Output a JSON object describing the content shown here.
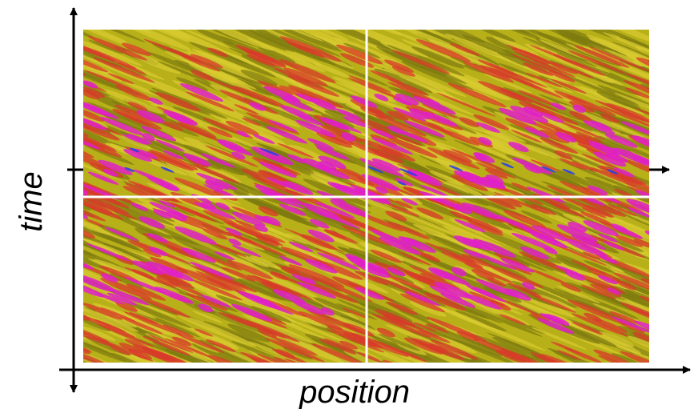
{
  "axes": {
    "y_label": "time",
    "x_label": "position"
  }
}
